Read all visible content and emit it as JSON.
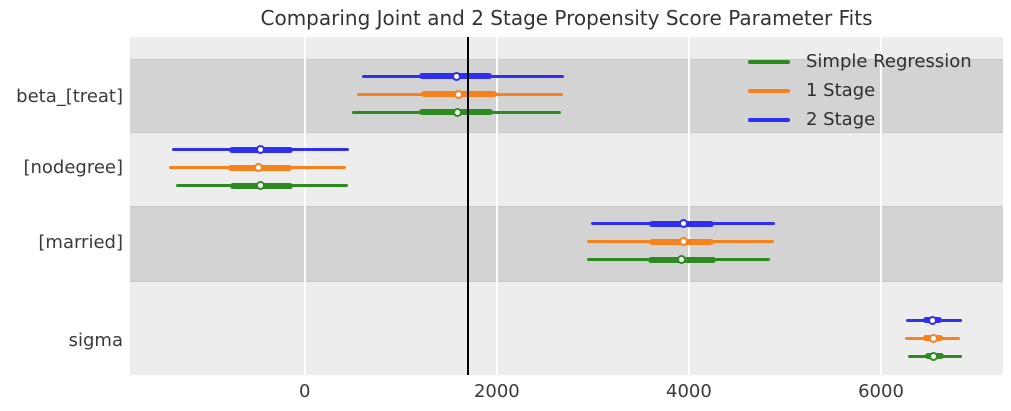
{
  "chart_data": {
    "type": "forest",
    "title": "Comparing Joint and 2 Stage Propensity Score Parameter Fits",
    "parameters": [
      "beta_[treat]",
      "[nodegree]",
      "[married]",
      "sigma"
    ],
    "x_ticks": [
      0,
      2000,
      4000,
      6000
    ],
    "x_tick_labels": [
      "0",
      "2000",
      "4000",
      "6000"
    ],
    "xlim": [
      -1820,
      7270
    ],
    "reference_line_x": 1700,
    "legend_position": "upper right",
    "grid": "vertical white gridlines over alternating gray bands",
    "series": [
      {
        "name": "Simple Regression",
        "color": "#2e8b22",
        "estimates": [
          {
            "parameter": "beta_[treat]",
            "median": 1590,
            "interval_inner": [
              1190,
              1960
            ],
            "interval_outer": [
              490,
              2670
            ]
          },
          {
            "parameter": "[nodegree]",
            "median": -460,
            "interval_inner": [
              -780,
              -125
            ],
            "interval_outer": [
              -1340,
              450
            ]
          },
          {
            "parameter": "[married]",
            "median": 3920,
            "interval_inner": [
              3570,
              4280
            ],
            "interval_outer": [
              2940,
              4840
            ]
          },
          {
            "parameter": "sigma",
            "median": 6550,
            "interval_inner": [
              6460,
              6660
            ],
            "interval_outer": [
              6280,
              6840
            ]
          }
        ]
      },
      {
        "name": "1 Stage",
        "color": "#f7811c",
        "estimates": [
          {
            "parameter": "beta_[treat]",
            "median": 1600,
            "interval_inner": [
              1210,
              2000
            ],
            "interval_outer": [
              540,
              2690
            ]
          },
          {
            "parameter": "[nodegree]",
            "median": -480,
            "interval_inner": [
              -800,
              -135
            ],
            "interval_outer": [
              -1410,
              430
            ]
          },
          {
            "parameter": "[married]",
            "median": 3940,
            "interval_inner": [
              3580,
              4260
            ],
            "interval_outer": [
              2940,
              4890
            ]
          },
          {
            "parameter": "sigma",
            "median": 6550,
            "interval_inner": [
              6440,
              6650
            ],
            "interval_outer": [
              6250,
              6820
            ]
          }
        ]
      },
      {
        "name": "2 Stage",
        "color": "#2f2ff0",
        "estimates": [
          {
            "parameter": "beta_[treat]",
            "median": 1580,
            "interval_inner": [
              1190,
              1950
            ],
            "interval_outer": [
              600,
              2700
            ]
          },
          {
            "parameter": "[nodegree]",
            "median": -460,
            "interval_inner": [
              -790,
              -125
            ],
            "interval_outer": [
              -1380,
              460
            ]
          },
          {
            "parameter": "[married]",
            "median": 3940,
            "interval_inner": [
              3580,
              4260
            ],
            "interval_outer": [
              2980,
              4900
            ]
          },
          {
            "parameter": "sigma",
            "median": 6540,
            "interval_inner": [
              6440,
              6640
            ],
            "interval_outer": [
              6260,
              6840
            ]
          }
        ]
      }
    ],
    "colors": {
      "band_dark": "#d3d3d3",
      "band_light": "#ededed",
      "gridline": "#ffffff",
      "reference_line": "#000000",
      "text": "#3a3a3a",
      "marker_fill": "#ffffff"
    }
  }
}
